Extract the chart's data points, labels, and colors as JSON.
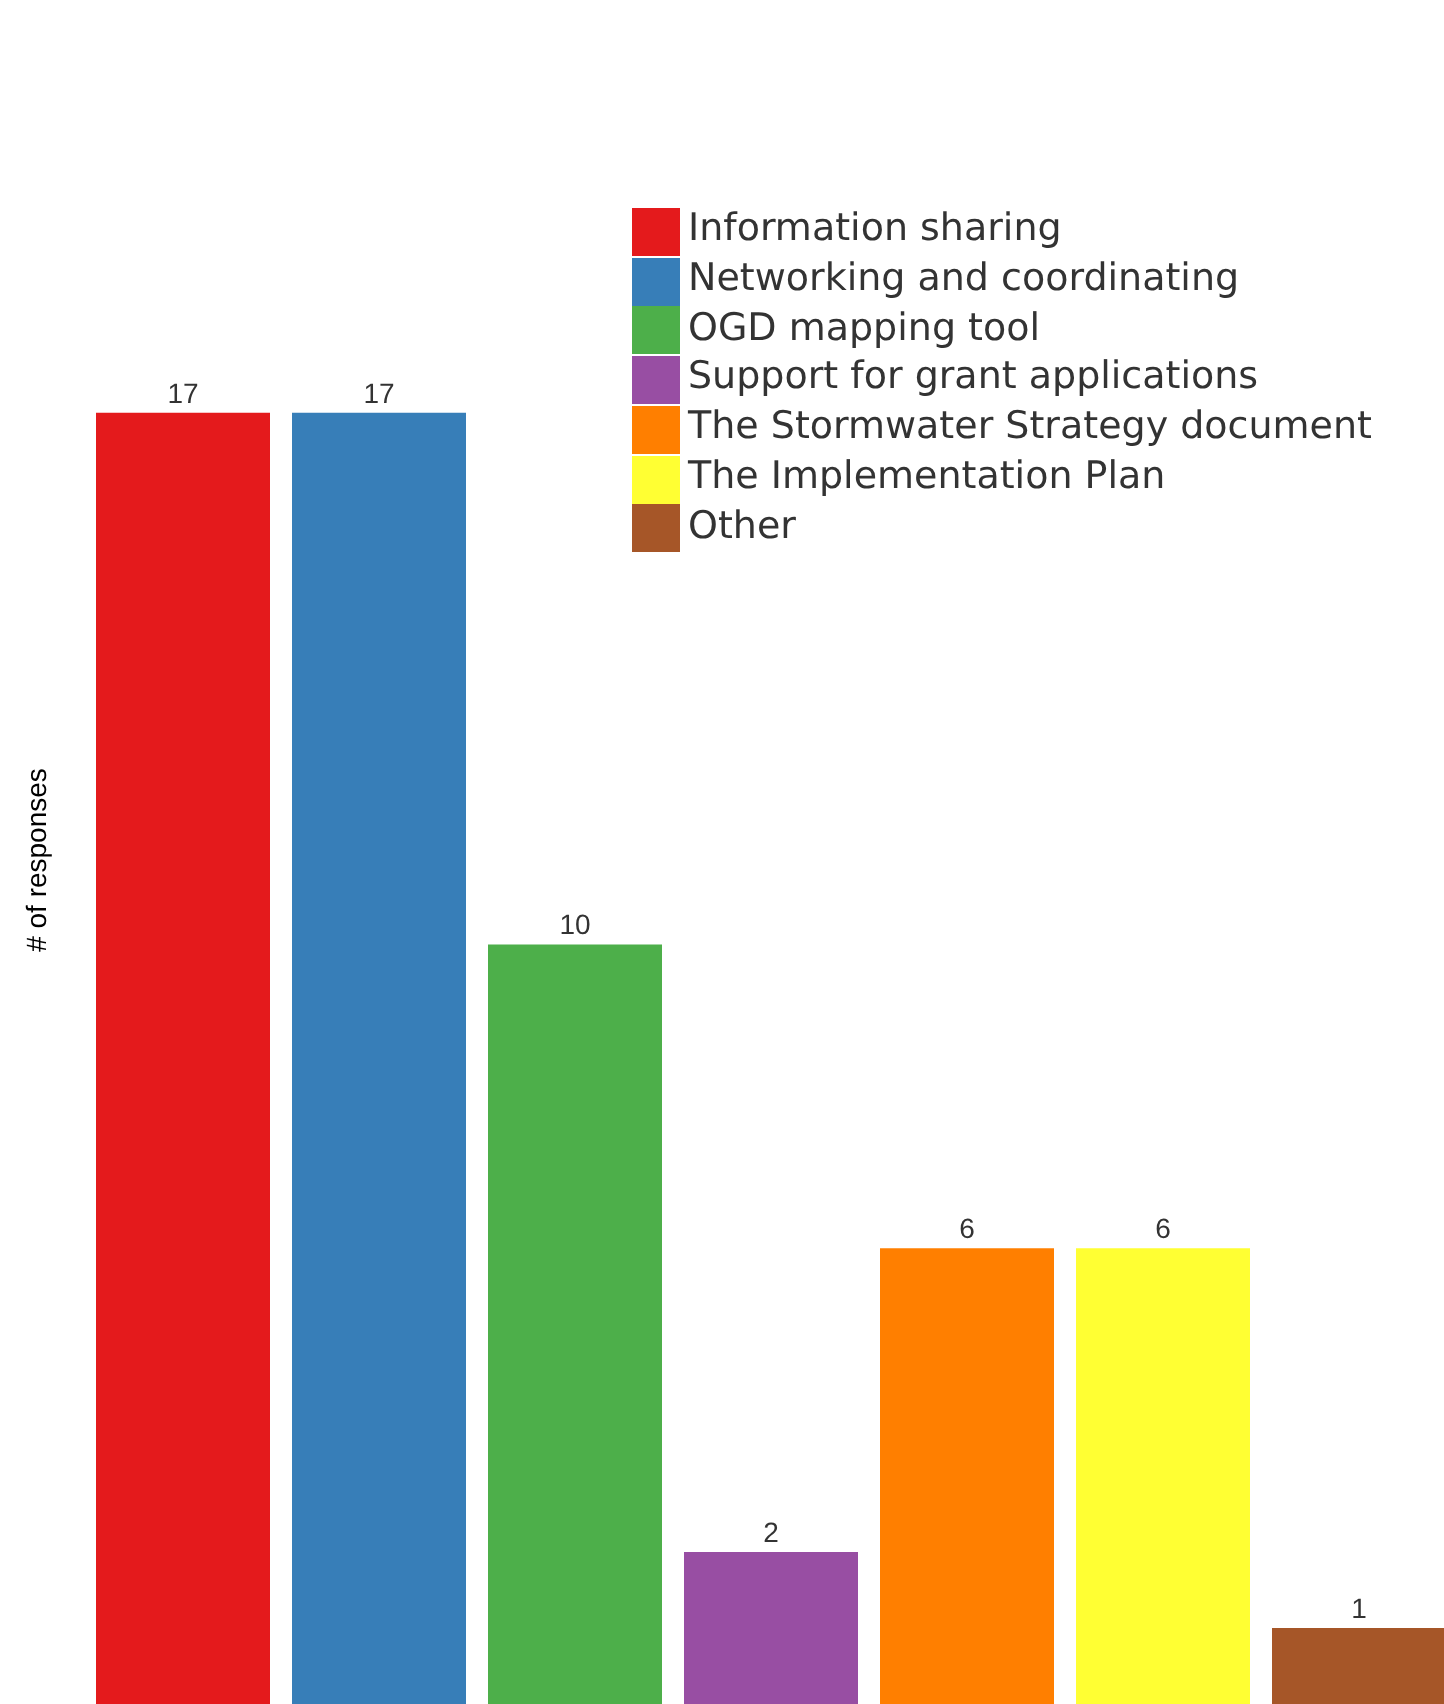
{
  "chart_data": {
    "type": "bar",
    "ylabel": "# of responses",
    "categories": [
      null
    ],
    "series": [
      {
        "name": "Information sharing",
        "color": "#e41a1c",
        "values": [
          17
        ]
      },
      {
        "name": "Networking and coordinating",
        "color": "#377eb8",
        "values": [
          17
        ]
      },
      {
        "name": "OGD mapping tool",
        "color": "#4daf4a",
        "values": [
          10
        ]
      },
      {
        "name": "Support for grant applications",
        "color": "#984ea3",
        "values": [
          2
        ]
      },
      {
        "name": "The Stormwater Strategy document",
        "color": "#ff7f00",
        "values": [
          6
        ]
      },
      {
        "name": "The Implementation Plan",
        "color": "#ffff33",
        "values": [
          6
        ]
      },
      {
        "name": "Other",
        "color": "#a65628",
        "values": [
          1
        ]
      }
    ],
    "data_labels": true,
    "legend": "top right",
    "grid": false
  }
}
